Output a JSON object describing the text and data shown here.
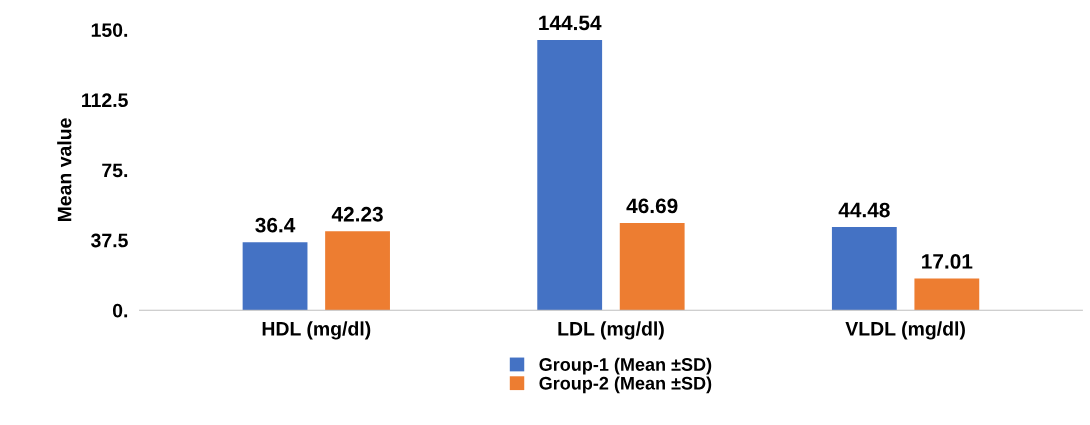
{
  "chart_data": {
    "type": "bar",
    "ylabel": "Mean value",
    "categories": [
      "HDL (mg/dl)",
      "LDL (mg/dl)",
      "VLDL (mg/dl)"
    ],
    "series": [
      {
        "name": "Group-1 (Mean ±SD)",
        "color": "#4472c4",
        "values": [
          36.4,
          144.54,
          44.48
        ]
      },
      {
        "name": "Group-2 (Mean ±SD)",
        "color": "#ed7d31",
        "values": [
          42.23,
          46.69,
          17.01
        ]
      }
    ],
    "ylim": [
      0,
      150
    ],
    "yticks": [
      {
        "value": 0,
        "label": "0."
      },
      {
        "value": 37.5,
        "label": "37.5"
      },
      {
        "value": 75,
        "label": "75."
      },
      {
        "value": 112.5,
        "label": "112.5"
      },
      {
        "value": 150,
        "label": "150."
      }
    ],
    "data_labels": true,
    "legend": "bottom",
    "grid": false
  }
}
